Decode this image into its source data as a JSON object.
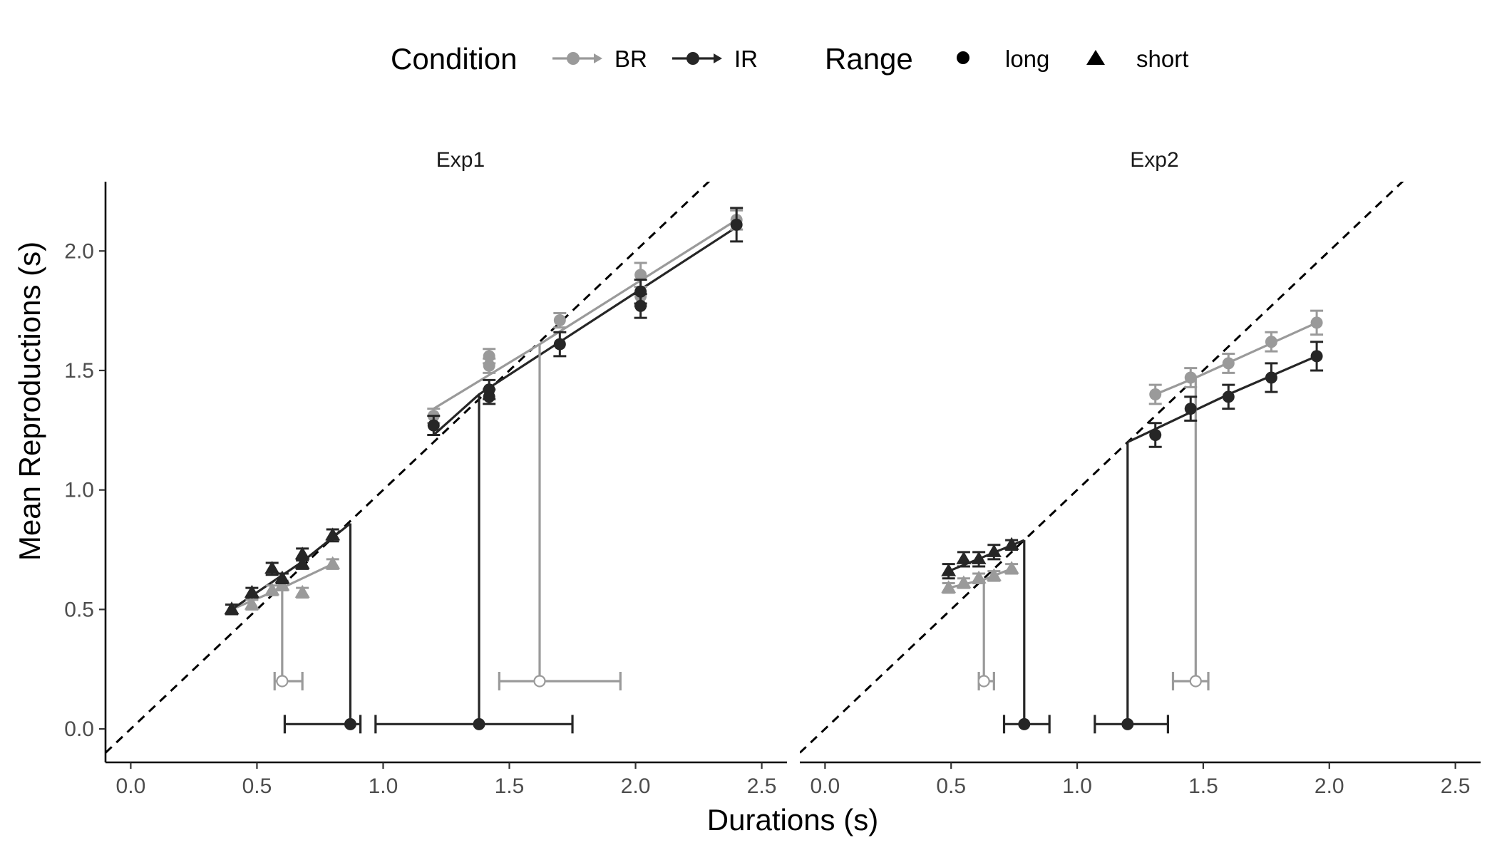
{
  "chart_data": {
    "type": "scatter",
    "title": "",
    "xlabel": "Durations (s)",
    "ylabel": "Mean Reproductions (s)",
    "xlim": [
      -0.1,
      2.6
    ],
    "ylim": [
      -0.14,
      2.29
    ],
    "x_ticks": [
      0.0,
      0.5,
      1.0,
      1.5,
      2.0,
      2.5
    ],
    "x_tick_labels": [
      "0.0",
      "0.5",
      "1.0",
      "1.5",
      "2.0",
      "2.5"
    ],
    "y_ticks": [
      0.0,
      0.5,
      1.0,
      1.5,
      2.0
    ],
    "y_tick_labels": [
      "0.0",
      "0.5",
      "1.0",
      "1.5",
      "2.0"
    ],
    "grid": false,
    "identity_line": "dashed",
    "legend": {
      "position": "top",
      "condition_title": "Condition",
      "condition_items": [
        {
          "label": "BR",
          "color": "#9a9a9a"
        },
        {
          "label": "IR",
          "color": "#262626"
        }
      ],
      "range_title": "Range",
      "range_items": [
        {
          "label": "long",
          "shape": "circle"
        },
        {
          "label": "short",
          "shape": "triangle"
        }
      ]
    },
    "colors": {
      "BR": "#9a9a9a",
      "IR": "#262626"
    },
    "panels": [
      {
        "title": "Exp1",
        "series": [
          {
            "condition": "BR",
            "range": "short",
            "shape": "triangle",
            "points": [
              [
                0.4,
                0.5,
                0.02
              ],
              [
                0.48,
                0.52,
                0.02
              ],
              [
                0.56,
                0.58,
                0.02
              ],
              [
                0.6,
                0.6,
                0.02
              ],
              [
                0.68,
                0.57,
                0.02
              ],
              [
                0.8,
                0.69,
                0.02
              ]
            ],
            "fit": [
              [
                0.4,
                0.5
              ],
              [
                0.6,
                0.59
              ],
              [
                0.8,
                0.69
              ]
            ]
          },
          {
            "condition": "IR",
            "range": "short",
            "shape": "triangle",
            "points": [
              [
                0.4,
                0.5,
                0.02
              ],
              [
                0.48,
                0.57,
                0.02
              ],
              [
                0.56,
                0.67,
                0.025
              ],
              [
                0.6,
                0.63,
                0.02
              ],
              [
                0.68,
                0.73,
                0.025
              ],
              [
                0.68,
                0.69,
                0.02
              ],
              [
                0.8,
                0.81,
                0.025
              ]
            ],
            "fit": [
              [
                0.4,
                0.5
              ],
              [
                0.68,
                0.7
              ],
              [
                0.87,
                0.86
              ]
            ]
          },
          {
            "condition": "BR",
            "range": "long",
            "shape": "circle",
            "points": [
              [
                1.2,
                1.31,
                0.03
              ],
              [
                1.42,
                1.56,
                0.03
              ],
              [
                1.42,
                1.52,
                0.03
              ],
              [
                1.7,
                1.71,
                0.03
              ],
              [
                2.02,
                1.9,
                0.05
              ],
              [
                2.02,
                1.81,
                0.04
              ],
              [
                2.4,
                2.13,
                0.04
              ]
            ],
            "fit": [
              [
                1.2,
                1.34
              ],
              [
                1.62,
                1.61
              ],
              [
                2.4,
                2.13
              ]
            ]
          },
          {
            "condition": "IR",
            "range": "long",
            "shape": "circle",
            "points": [
              [
                1.2,
                1.27,
                0.04
              ],
              [
                1.42,
                1.42,
                0.04
              ],
              [
                1.42,
                1.39,
                0.03
              ],
              [
                1.7,
                1.61,
                0.05
              ],
              [
                2.02,
                1.83,
                0.05
              ],
              [
                2.02,
                1.77,
                0.05
              ],
              [
                2.4,
                2.11,
                0.07
              ]
            ],
            "fit": [
              [
                1.2,
                1.23
              ],
              [
                1.38,
                1.4
              ],
              [
                2.4,
                2.1
              ]
            ]
          }
        ],
        "pse_markers": [
          {
            "condition": "BR",
            "pse": 0.6,
            "ci": [
              0.57,
              0.68
            ],
            "level": 0.2,
            "filled": false,
            "drop_from": 0.6
          },
          {
            "condition": "IR",
            "pse": 0.87,
            "ci": [
              0.61,
              0.91
            ],
            "level": 0.02,
            "filled": true,
            "drop_from": 0.86
          },
          {
            "condition": "BR",
            "pse": 1.62,
            "ci": [
              1.46,
              1.94
            ],
            "level": 0.2,
            "filled": false,
            "drop_from": 1.61
          },
          {
            "condition": "IR",
            "pse": 1.38,
            "ci": [
              0.97,
              1.75
            ],
            "level": 0.02,
            "filled": true,
            "drop_from": 1.4
          }
        ]
      },
      {
        "title": "Exp2",
        "series": [
          {
            "condition": "BR",
            "range": "short",
            "shape": "triangle",
            "points": [
              [
                0.49,
                0.59,
                0.02
              ],
              [
                0.55,
                0.61,
                0.02
              ],
              [
                0.61,
                0.63,
                0.02
              ],
              [
                0.67,
                0.64,
                0.02
              ],
              [
                0.74,
                0.67,
                0.02
              ]
            ],
            "fit": [
              [
                0.49,
                0.59
              ],
              [
                0.63,
                0.625
              ],
              [
                0.74,
                0.67
              ]
            ]
          },
          {
            "condition": "IR",
            "range": "short",
            "shape": "triangle",
            "points": [
              [
                0.49,
                0.66,
                0.03
              ],
              [
                0.55,
                0.71,
                0.03
              ],
              [
                0.61,
                0.71,
                0.03
              ],
              [
                0.67,
                0.74,
                0.03
              ],
              [
                0.74,
                0.77,
                0.02
              ]
            ],
            "fit": [
              [
                0.49,
                0.66
              ],
              [
                0.79,
                0.79
              ]
            ]
          },
          {
            "condition": "BR",
            "range": "long",
            "shape": "circle",
            "points": [
              [
                1.31,
                1.4,
                0.04
              ],
              [
                1.45,
                1.47,
                0.04
              ],
              [
                1.6,
                1.53,
                0.04
              ],
              [
                1.77,
                1.62,
                0.04
              ],
              [
                1.95,
                1.7,
                0.05
              ]
            ],
            "fit": [
              [
                1.31,
                1.4
              ],
              [
                1.47,
                1.47
              ],
              [
                1.95,
                1.7
              ]
            ]
          },
          {
            "condition": "IR",
            "range": "long",
            "shape": "circle",
            "points": [
              [
                1.31,
                1.23,
                0.05
              ],
              [
                1.45,
                1.34,
                0.05
              ],
              [
                1.6,
                1.39,
                0.05
              ],
              [
                1.77,
                1.47,
                0.06
              ],
              [
                1.95,
                1.56,
                0.06
              ]
            ],
            "fit": [
              [
                1.2,
                1.2
              ],
              [
                1.6,
                1.4
              ],
              [
                1.95,
                1.56
              ]
            ]
          }
        ],
        "pse_markers": [
          {
            "condition": "BR",
            "pse": 0.63,
            "ci": [
              0.61,
              0.67
            ],
            "level": 0.2,
            "filled": false,
            "drop_from": 0.625
          },
          {
            "condition": "IR",
            "pse": 0.79,
            "ci": [
              0.71,
              0.89
            ],
            "level": 0.02,
            "filled": true,
            "drop_from": 0.79
          },
          {
            "condition": "BR",
            "pse": 1.47,
            "ci": [
              1.38,
              1.52
            ],
            "level": 0.2,
            "filled": false,
            "drop_from": 1.47
          },
          {
            "condition": "IR",
            "pse": 1.2,
            "ci": [
              1.07,
              1.36
            ],
            "level": 0.02,
            "filled": true,
            "drop_from": 1.2
          }
        ]
      }
    ]
  }
}
